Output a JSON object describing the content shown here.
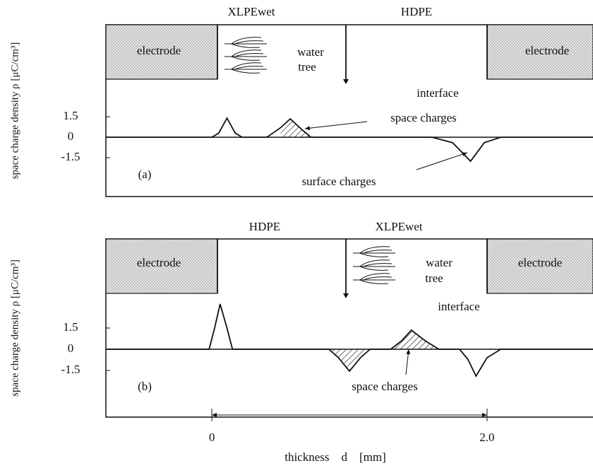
{
  "chart_data": [
    {
      "type": "line",
      "layers": [
        "XLPEwet",
        "HDPE"
      ],
      "y_label": "space charge density  ρ  [μC/cm³]",
      "annotations": [
        "electrode",
        "electrode",
        "water",
        "tree",
        "interface",
        "space charges",
        "surface charges",
        "(a)"
      ],
      "x": [
        -0.77,
        0.0,
        0.05,
        0.11,
        0.17,
        0.22,
        0.4,
        0.5,
        0.57,
        0.65,
        0.72,
        1.6,
        1.75,
        1.88,
        1.98,
        2.1,
        2.77
      ],
      "series": [
        {
          "color": "#111111",
          "values": [
            0,
            0,
            0.3,
            1.4,
            0.3,
            0,
            0,
            0.7,
            1.35,
            0.6,
            0,
            0,
            -0.4,
            -1.76,
            -0.4,
            0,
            0
          ]
        }
      ],
      "xlim": [
        -0.77,
        2.77
      ],
      "ylim": [
        -4.35,
        8.25
      ],
      "yticks": [
        -1.5,
        0,
        1.5
      ]
    },
    {
      "type": "line",
      "layers": [
        "HDPE",
        "XLPEwet"
      ],
      "y_label": "space charge density  ρ  [μC/cm³]",
      "annotations": [
        "electrode",
        "electrode",
        "water",
        "tree",
        "interface",
        "space charges",
        "(b)"
      ],
      "x": [
        -0.77,
        -0.02,
        0.02,
        0.06,
        0.11,
        0.15,
        0.85,
        0.92,
        1.0,
        1.08,
        1.15,
        1.3,
        1.38,
        1.45,
        1.55,
        1.65,
        1.8,
        1.86,
        1.92,
        2.0,
        2.1,
        2.77
      ],
      "series": [
        {
          "color": "#111111",
          "values": [
            0,
            0,
            1.5,
            3.2,
            1.5,
            0,
            0,
            -0.6,
            -1.55,
            -0.6,
            0,
            0,
            0.6,
            1.35,
            0.6,
            0,
            0,
            -0.7,
            -1.9,
            -0.6,
            0,
            0
          ]
        }
      ],
      "xlim": [
        -0.77,
        2.77
      ],
      "ylim": [
        -4.8,
        7.8
      ],
      "yticks": [
        -1.5,
        0,
        1.5
      ],
      "x_label": "thickness    d    [mm]",
      "xticks": [
        0,
        {
          "value": 2,
          "label": "2.0"
        }
      ]
    }
  ]
}
